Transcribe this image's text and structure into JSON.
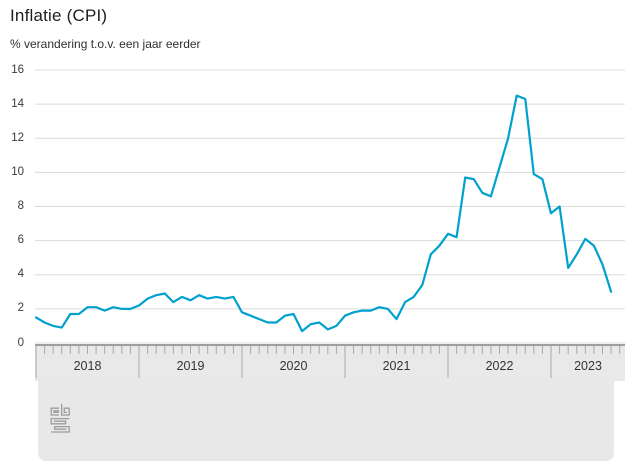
{
  "header": {
    "title": "Inflatie (CPI)",
    "subtitle": "% verandering t.o.v. een jaar eerder"
  },
  "colors": {
    "line": "#00a1cd",
    "grid": "#dcdcdc",
    "axis_band_bg": "#e9e9e9",
    "axis_band_border": "#9e9e9e",
    "tick": "#a9a9a9",
    "label": "#3a3a3a",
    "logo": "#9c9c9c"
  },
  "footer": {
    "logo_icon": "cbs-logo"
  },
  "chart_data": {
    "type": "line",
    "title": "Inflatie (CPI)",
    "ylabel": "% verandering t.o.v. een jaar eerder",
    "unit": "%",
    "ylim": [
      0,
      16
    ],
    "ytick_step": 2,
    "ytick_labels": [
      "0",
      "2",
      "4",
      "6",
      "8",
      "10",
      "12",
      "14",
      "16"
    ],
    "grid": true,
    "legend_position": "none",
    "x_monthly_start": "2018-01",
    "x_monthly_end": "2023-08",
    "x_year_labels": [
      "2018",
      "2019",
      "2020",
      "2021",
      "2022",
      "2023"
    ],
    "series": [
      {
        "name": "Inflatie (CPI)",
        "values": [
          1.5,
          1.2,
          1.0,
          0.9,
          1.7,
          1.7,
          2.1,
          2.1,
          1.9,
          2.1,
          2.0,
          2.0,
          2.2,
          2.6,
          2.8,
          2.9,
          2.4,
          2.7,
          2.5,
          2.8,
          2.6,
          2.7,
          2.6,
          2.7,
          1.8,
          1.6,
          1.4,
          1.2,
          1.2,
          1.6,
          1.7,
          0.7,
          1.1,
          1.2,
          0.8,
          1.0,
          1.6,
          1.8,
          1.9,
          1.9,
          2.1,
          2.0,
          1.4,
          2.4,
          2.7,
          3.4,
          5.2,
          5.7,
          6.4,
          6.2,
          9.7,
          9.6,
          8.8,
          8.6,
          10.3,
          12.0,
          14.5,
          14.3,
          9.9,
          9.6,
          7.6,
          8.0,
          4.4,
          5.2,
          6.1,
          5.7,
          4.6,
          3.0
        ],
        "values_by_year": {
          "2018": [
            1.5,
            1.2,
            1.0,
            0.9,
            1.7,
            1.7,
            2.1,
            2.1,
            1.9,
            2.1,
            2.0,
            2.0
          ],
          "2019": [
            2.2,
            2.6,
            2.8,
            2.9,
            2.4,
            2.7,
            2.5,
            2.8,
            2.6,
            2.7,
            2.6,
            2.7
          ],
          "2020": [
            1.8,
            1.6,
            1.4,
            1.2,
            1.2,
            1.6,
            1.7,
            0.7,
            1.1,
            1.2,
            0.8,
            1.0
          ],
          "2021": [
            1.6,
            1.8,
            1.9,
            1.9,
            2.1,
            2.0,
            1.4,
            2.4,
            2.7,
            3.4,
            5.2,
            5.7
          ],
          "2022": [
            6.4,
            6.2,
            9.7,
            9.6,
            8.8,
            8.6,
            10.3,
            12.0,
            14.5,
            14.3,
            9.9,
            9.6
          ],
          "2023": [
            7.6,
            8.0,
            4.4,
            5.2,
            6.1,
            5.7,
            4.6,
            3.0
          ]
        }
      }
    ]
  }
}
